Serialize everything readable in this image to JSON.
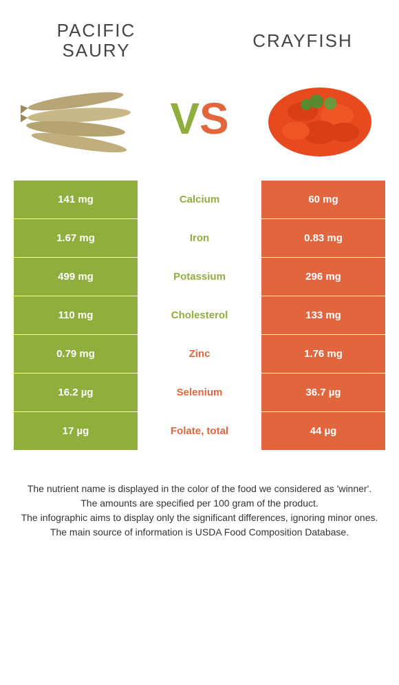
{
  "left_title": "Pacific saury",
  "right_title": "Crayfish",
  "vs_v": "V",
  "vs_s": "S",
  "colors": {
    "green": "#8fae3c",
    "orange": "#e2663d",
    "white": "#ffffff",
    "text": "#444444"
  },
  "rows": [
    {
      "left": "141 mg",
      "nutrient": "Calcium",
      "right": "60 mg",
      "winner": "left"
    },
    {
      "left": "1.67 mg",
      "nutrient": "Iron",
      "right": "0.83 mg",
      "winner": "left"
    },
    {
      "left": "499 mg",
      "nutrient": "Potassium",
      "right": "296 mg",
      "winner": "left"
    },
    {
      "left": "110 mg",
      "nutrient": "Cholesterol",
      "right": "133 mg",
      "winner": "left"
    },
    {
      "left": "0.79 mg",
      "nutrient": "Zinc",
      "right": "1.76 mg",
      "winner": "right"
    },
    {
      "left": "16.2 µg",
      "nutrient": "Selenium",
      "right": "36.7 µg",
      "winner": "right"
    },
    {
      "left": "17 µg",
      "nutrient": "Folate, total",
      "right": "44 µg",
      "winner": "right"
    }
  ],
  "footer_lines": [
    "The nutrient name is displayed in the color of the food we considered as 'winner'.",
    "The amounts are specified per 100 gram of the product.",
    "The infographic aims to display only the significant differences, ignoring minor ones.",
    "The main source of information is USDA Food Composition Database."
  ]
}
